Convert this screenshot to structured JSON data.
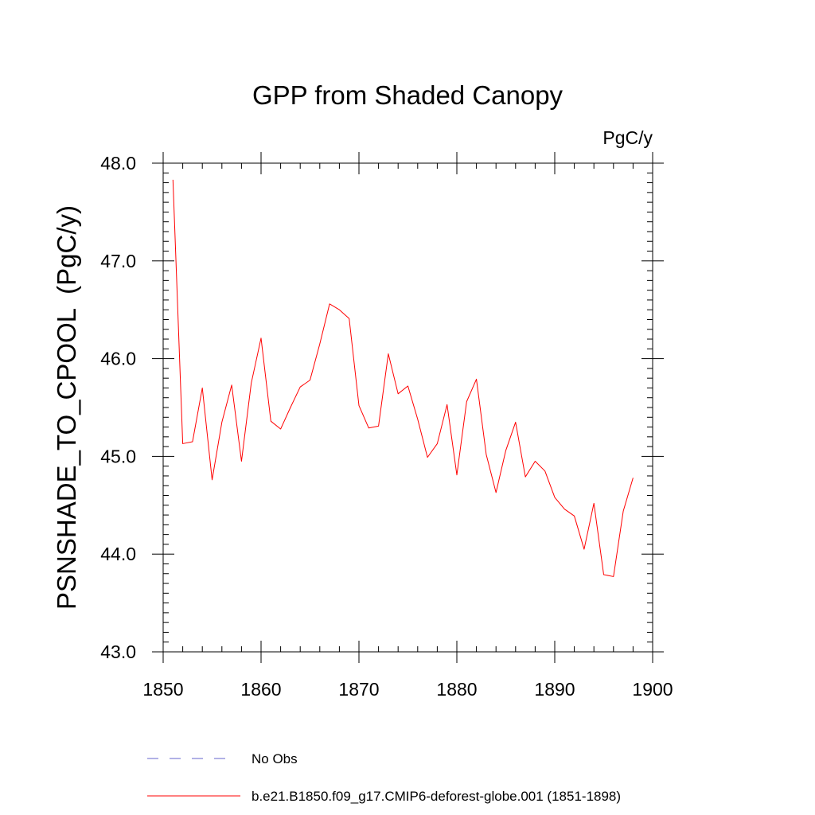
{
  "chart_data": {
    "type": "line",
    "title": "GPP from Shaded Canopy",
    "units_label": "PgC/y",
    "xlabel": "",
    "ylabel": "PSNSHADE_TO_CPOOL  (PgC/y)",
    "xlim": [
      1850,
      1900
    ],
    "ylim": [
      43.0,
      48.0
    ],
    "x_ticks": [
      1850,
      1860,
      1870,
      1880,
      1890,
      1900
    ],
    "x_tick_labels": [
      "1850",
      "1860",
      "1870",
      "1880",
      "1890",
      "1900"
    ],
    "y_ticks": [
      43.0,
      44.0,
      45.0,
      46.0,
      47.0,
      48.0
    ],
    "y_tick_labels": [
      "43.0",
      "44.0",
      "45.0",
      "46.0",
      "47.0",
      "48.0"
    ],
    "grid": false,
    "legend_position": "bottom",
    "series": [
      {
        "name": "b.e21.B1850.f09_g17.CMIP6-deforest-globe.001 (1851-1898)",
        "color": "#ff0000",
        "style": "solid",
        "x": [
          1851,
          1852,
          1853,
          1854,
          1855,
          1856,
          1857,
          1858,
          1859,
          1860,
          1861,
          1862,
          1863,
          1864,
          1865,
          1866,
          1867,
          1868,
          1869,
          1870,
          1871,
          1872,
          1873,
          1874,
          1875,
          1876,
          1877,
          1878,
          1879,
          1880,
          1881,
          1882,
          1883,
          1884,
          1885,
          1886,
          1887,
          1888,
          1889,
          1890,
          1891,
          1892,
          1893,
          1894,
          1895,
          1896,
          1897,
          1898
        ],
        "values": [
          47.83,
          45.13,
          45.15,
          45.7,
          44.76,
          45.35,
          45.73,
          44.95,
          45.75,
          46.21,
          45.36,
          45.28,
          45.5,
          45.71,
          45.78,
          46.15,
          46.56,
          46.5,
          46.41,
          45.52,
          45.29,
          45.31,
          46.05,
          45.64,
          45.72,
          45.38,
          44.99,
          45.13,
          45.53,
          44.81,
          45.56,
          45.79,
          45.02,
          44.63,
          45.06,
          45.35,
          44.79,
          44.95,
          44.85,
          44.58,
          44.46,
          44.39,
          44.05,
          44.52,
          43.79,
          43.77,
          44.44,
          44.78
        ]
      },
      {
        "name": "No Obs",
        "color": "#6666cc",
        "style": "dashed",
        "x": [],
        "values": []
      }
    ]
  }
}
